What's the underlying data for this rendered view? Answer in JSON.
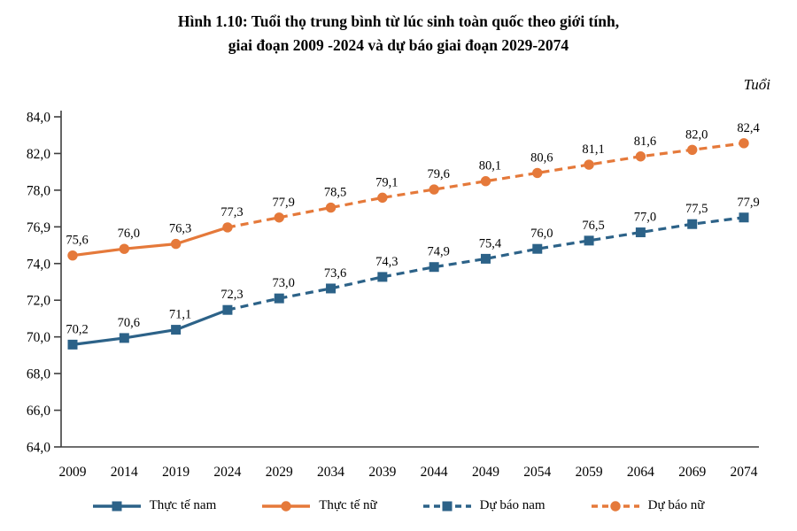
{
  "title": {
    "line1": "Hình 1.10: Tuổi thọ trung bình từ lúc sinh toàn quốc theo giới tính,",
    "line2": "giai đoạn 2009 -2024 và dự báo giai đoạn 2029-2074"
  },
  "chart_data": {
    "type": "line",
    "unit_label": "Tuổi",
    "categories": [
      "2009",
      "2014",
      "2019",
      "2024",
      "2029",
      "2034",
      "2039",
      "2044",
      "2049",
      "2054",
      "2059",
      "2064",
      "2069",
      "2074"
    ],
    "y_axis": {
      "min": 64,
      "max": 84,
      "tick_labels_top_to_bottom": [
        "84,0",
        "82,0",
        "78,0",
        "76,9",
        "74,0",
        "72,0",
        "70,0",
        "68,0",
        "66,0",
        "64,0"
      ]
    },
    "colors": {
      "male": "#2C6288",
      "female": "#E5793A",
      "axis": "#3f3f3f",
      "text": "#000000"
    },
    "legend_position": "bottom",
    "series": [
      {
        "name": "Thực tế nam",
        "color": "#2C6288",
        "line_style": "solid",
        "marker": "square",
        "start_index": 0,
        "values": [
          70.2,
          70.6,
          71.1,
          72.3
        ],
        "labels": [
          "70,2",
          "70,6",
          "71,1",
          "72,3"
        ]
      },
      {
        "name": "Thực tế nữ",
        "color": "#E5793A",
        "line_style": "solid",
        "marker": "circle",
        "start_index": 0,
        "values": [
          75.6,
          76.0,
          76.3,
          77.3
        ],
        "labels": [
          "75,6",
          "76,0",
          "76,3",
          "77,3"
        ]
      },
      {
        "name": "Dự báo nam",
        "color": "#2C6288",
        "line_style": "dashed",
        "marker": "square",
        "start_index": 3,
        "connector_first": true,
        "values": [
          72.3,
          73.0,
          73.6,
          74.3,
          74.9,
          75.4,
          76.0,
          76.5,
          77.0,
          77.5,
          77.9
        ],
        "labels": [
          "",
          "73,0",
          "73,6",
          "74,3",
          "74,9",
          "75,4",
          "76,0",
          "76,5",
          "77,0",
          "77,5",
          "77,9"
        ]
      },
      {
        "name": "Dự báo nữ",
        "color": "#E5793A",
        "line_style": "dashed",
        "marker": "circle",
        "start_index": 3,
        "connector_first": true,
        "values": [
          77.3,
          77.9,
          78.5,
          79.1,
          79.6,
          80.1,
          80.6,
          81.1,
          81.6,
          82.0,
          82.4
        ],
        "labels": [
          "",
          "77,9",
          "78,5",
          "79,1",
          "79,6",
          "80,1",
          "80,6",
          "81,1",
          "81,6",
          "82,0",
          "82,4"
        ]
      }
    ]
  }
}
